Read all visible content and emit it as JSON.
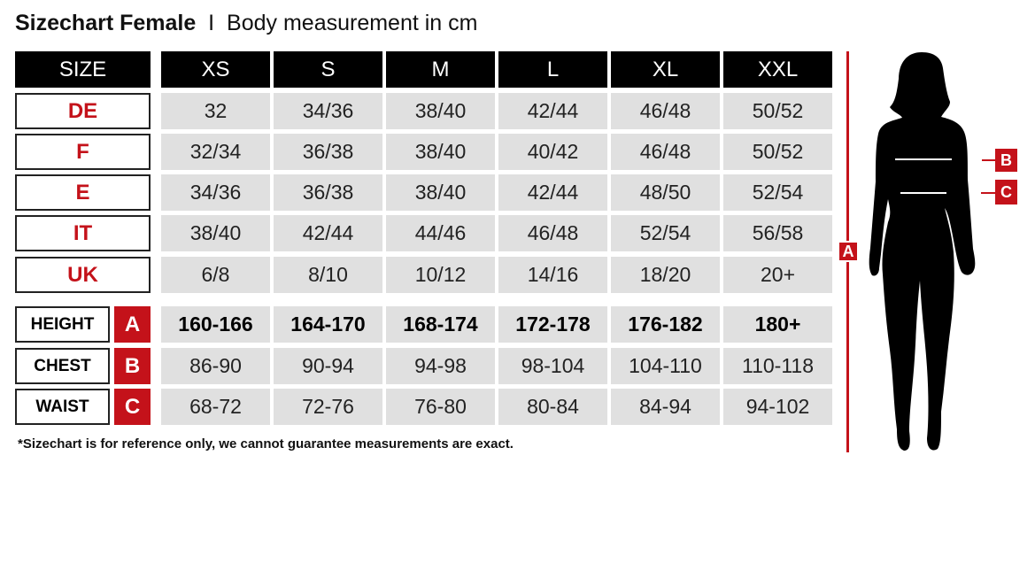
{
  "title": {
    "main": "Sizechart Female",
    "separator": "I",
    "sub": "Body measurement in cm"
  },
  "header": {
    "label": "SIZE",
    "sizes": [
      "XS",
      "S",
      "M",
      "L",
      "XL",
      "XXL"
    ]
  },
  "conversion_rows": [
    {
      "label": "DE",
      "values": [
        "32",
        "34/36",
        "38/40",
        "42/44",
        "46/48",
        "50/52"
      ]
    },
    {
      "label": "F",
      "values": [
        "32/34",
        "36/38",
        "38/40",
        "40/42",
        "46/48",
        "50/52"
      ]
    },
    {
      "label": "E",
      "values": [
        "34/36",
        "36/38",
        "38/40",
        "42/44",
        "48/50",
        "52/54"
      ]
    },
    {
      "label": "IT",
      "values": [
        "38/40",
        "42/44",
        "44/46",
        "46/48",
        "52/54",
        "56/58"
      ]
    },
    {
      "label": "UK",
      "values": [
        "6/8",
        "8/10",
        "10/12",
        "14/16",
        "18/20",
        "20+"
      ]
    }
  ],
  "measurement_rows": [
    {
      "label": "HEIGHT",
      "marker": "A",
      "values": [
        "160-166",
        "164-170",
        "168-174",
        "172-178",
        "176-182",
        "180+"
      ]
    },
    {
      "label": "CHEST",
      "marker": "B",
      "values": [
        "86-90",
        "90-94",
        "94-98",
        "98-104",
        "104-110",
        "110-118"
      ]
    },
    {
      "label": "WAIST",
      "marker": "C",
      "values": [
        "68-72",
        "72-76",
        "76-80",
        "80-84",
        "84-94",
        "94-102"
      ]
    }
  ],
  "figure": {
    "height_marker": "A",
    "chest_marker": "B",
    "waist_marker": "C"
  },
  "note": "*Sizechart is for reference only, we cannot guarantee measurements are exact.",
  "colors": {
    "accent": "#c4121a",
    "header_bg": "#000000",
    "cell_bg": "#e0e0e0"
  }
}
